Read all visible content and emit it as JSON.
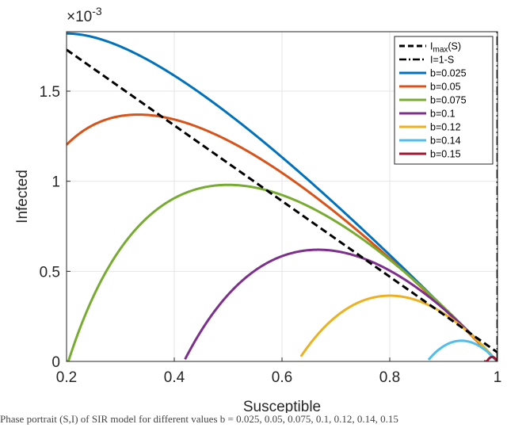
{
  "chart_data": {
    "type": "line",
    "xlabel": "Susceptible",
    "ylabel": "Infected",
    "xlim": [
      0.2,
      1.0
    ],
    "ylim": [
      0,
      0.00183
    ],
    "x_ticks": [
      0.2,
      0.4,
      0.6,
      0.8,
      1.0
    ],
    "x_tick_labels": [
      "0.2",
      "0.4",
      "0.6",
      "0.8",
      "1"
    ],
    "y_ticks": [
      0,
      0.0005,
      0.001,
      0.0015
    ],
    "y_tick_labels": [
      "0",
      "0.5",
      "1",
      "1.5"
    ],
    "y_exponent_label": "×10",
    "y_exponent_power": "-3",
    "grid": true,
    "legend_placement": "top-right",
    "reference_lines": [
      {
        "name": "I",
        "name_sub": "max",
        "name_suffix": "(S)",
        "style": "dashed",
        "color": "#000000",
        "points": [
          [
            0.2,
            0.00173
          ],
          [
            1.0,
            5e-05
          ]
        ]
      },
      {
        "name": "I=1-S",
        "style": "dashdot",
        "color": "#000000",
        "points": [
          [
            0.9999,
            0.0
          ],
          [
            0.9999,
            0.00183
          ]
        ]
      }
    ],
    "series": [
      {
        "name": "b=0.025",
        "color": "#0072BD",
        "x_start": 0.2,
        "x_end": 1.0,
        "peak_x": 0.2,
        "peak_y": 0.00182
      },
      {
        "name": "b=0.05",
        "color": "#D95319",
        "x_start": 0.2,
        "x_end": 1.0,
        "peak_x": 0.333,
        "peak_y": 0.00137,
        "y_at_start": 0.00128
      },
      {
        "name": "b=0.075",
        "color": "#77AC30",
        "x_start": 0.2,
        "x_end": 1.0,
        "peak_x": 0.5,
        "peak_y": 0.00098
      },
      {
        "name": "b=0.1",
        "color": "#7E2F8E",
        "x_start": 0.42,
        "x_end": 1.0,
        "peak_x": 0.667,
        "peak_y": 0.00062
      },
      {
        "name": "b=0.12",
        "color": "#EDB120",
        "x_start": 0.635,
        "x_end": 1.0,
        "peak_x": 0.8,
        "peak_y": 0.000365
      },
      {
        "name": "b=0.14",
        "color": "#4DBEEE",
        "x_start": 0.872,
        "x_end": 1.0,
        "peak_x": 0.933,
        "peak_y": 0.000115
      },
      {
        "name": "b=0.15",
        "color": "#A2142F",
        "x_start": 0.975,
        "x_end": 1.0,
        "peak_x": 0.99,
        "peak_y": 2.5e-05
      }
    ]
  },
  "caption": "Phase portrait (S,I) of SIR model for different values b = 0.025, 0.05, 0.075, 0.1, 0.12, 0.14, 0.15"
}
